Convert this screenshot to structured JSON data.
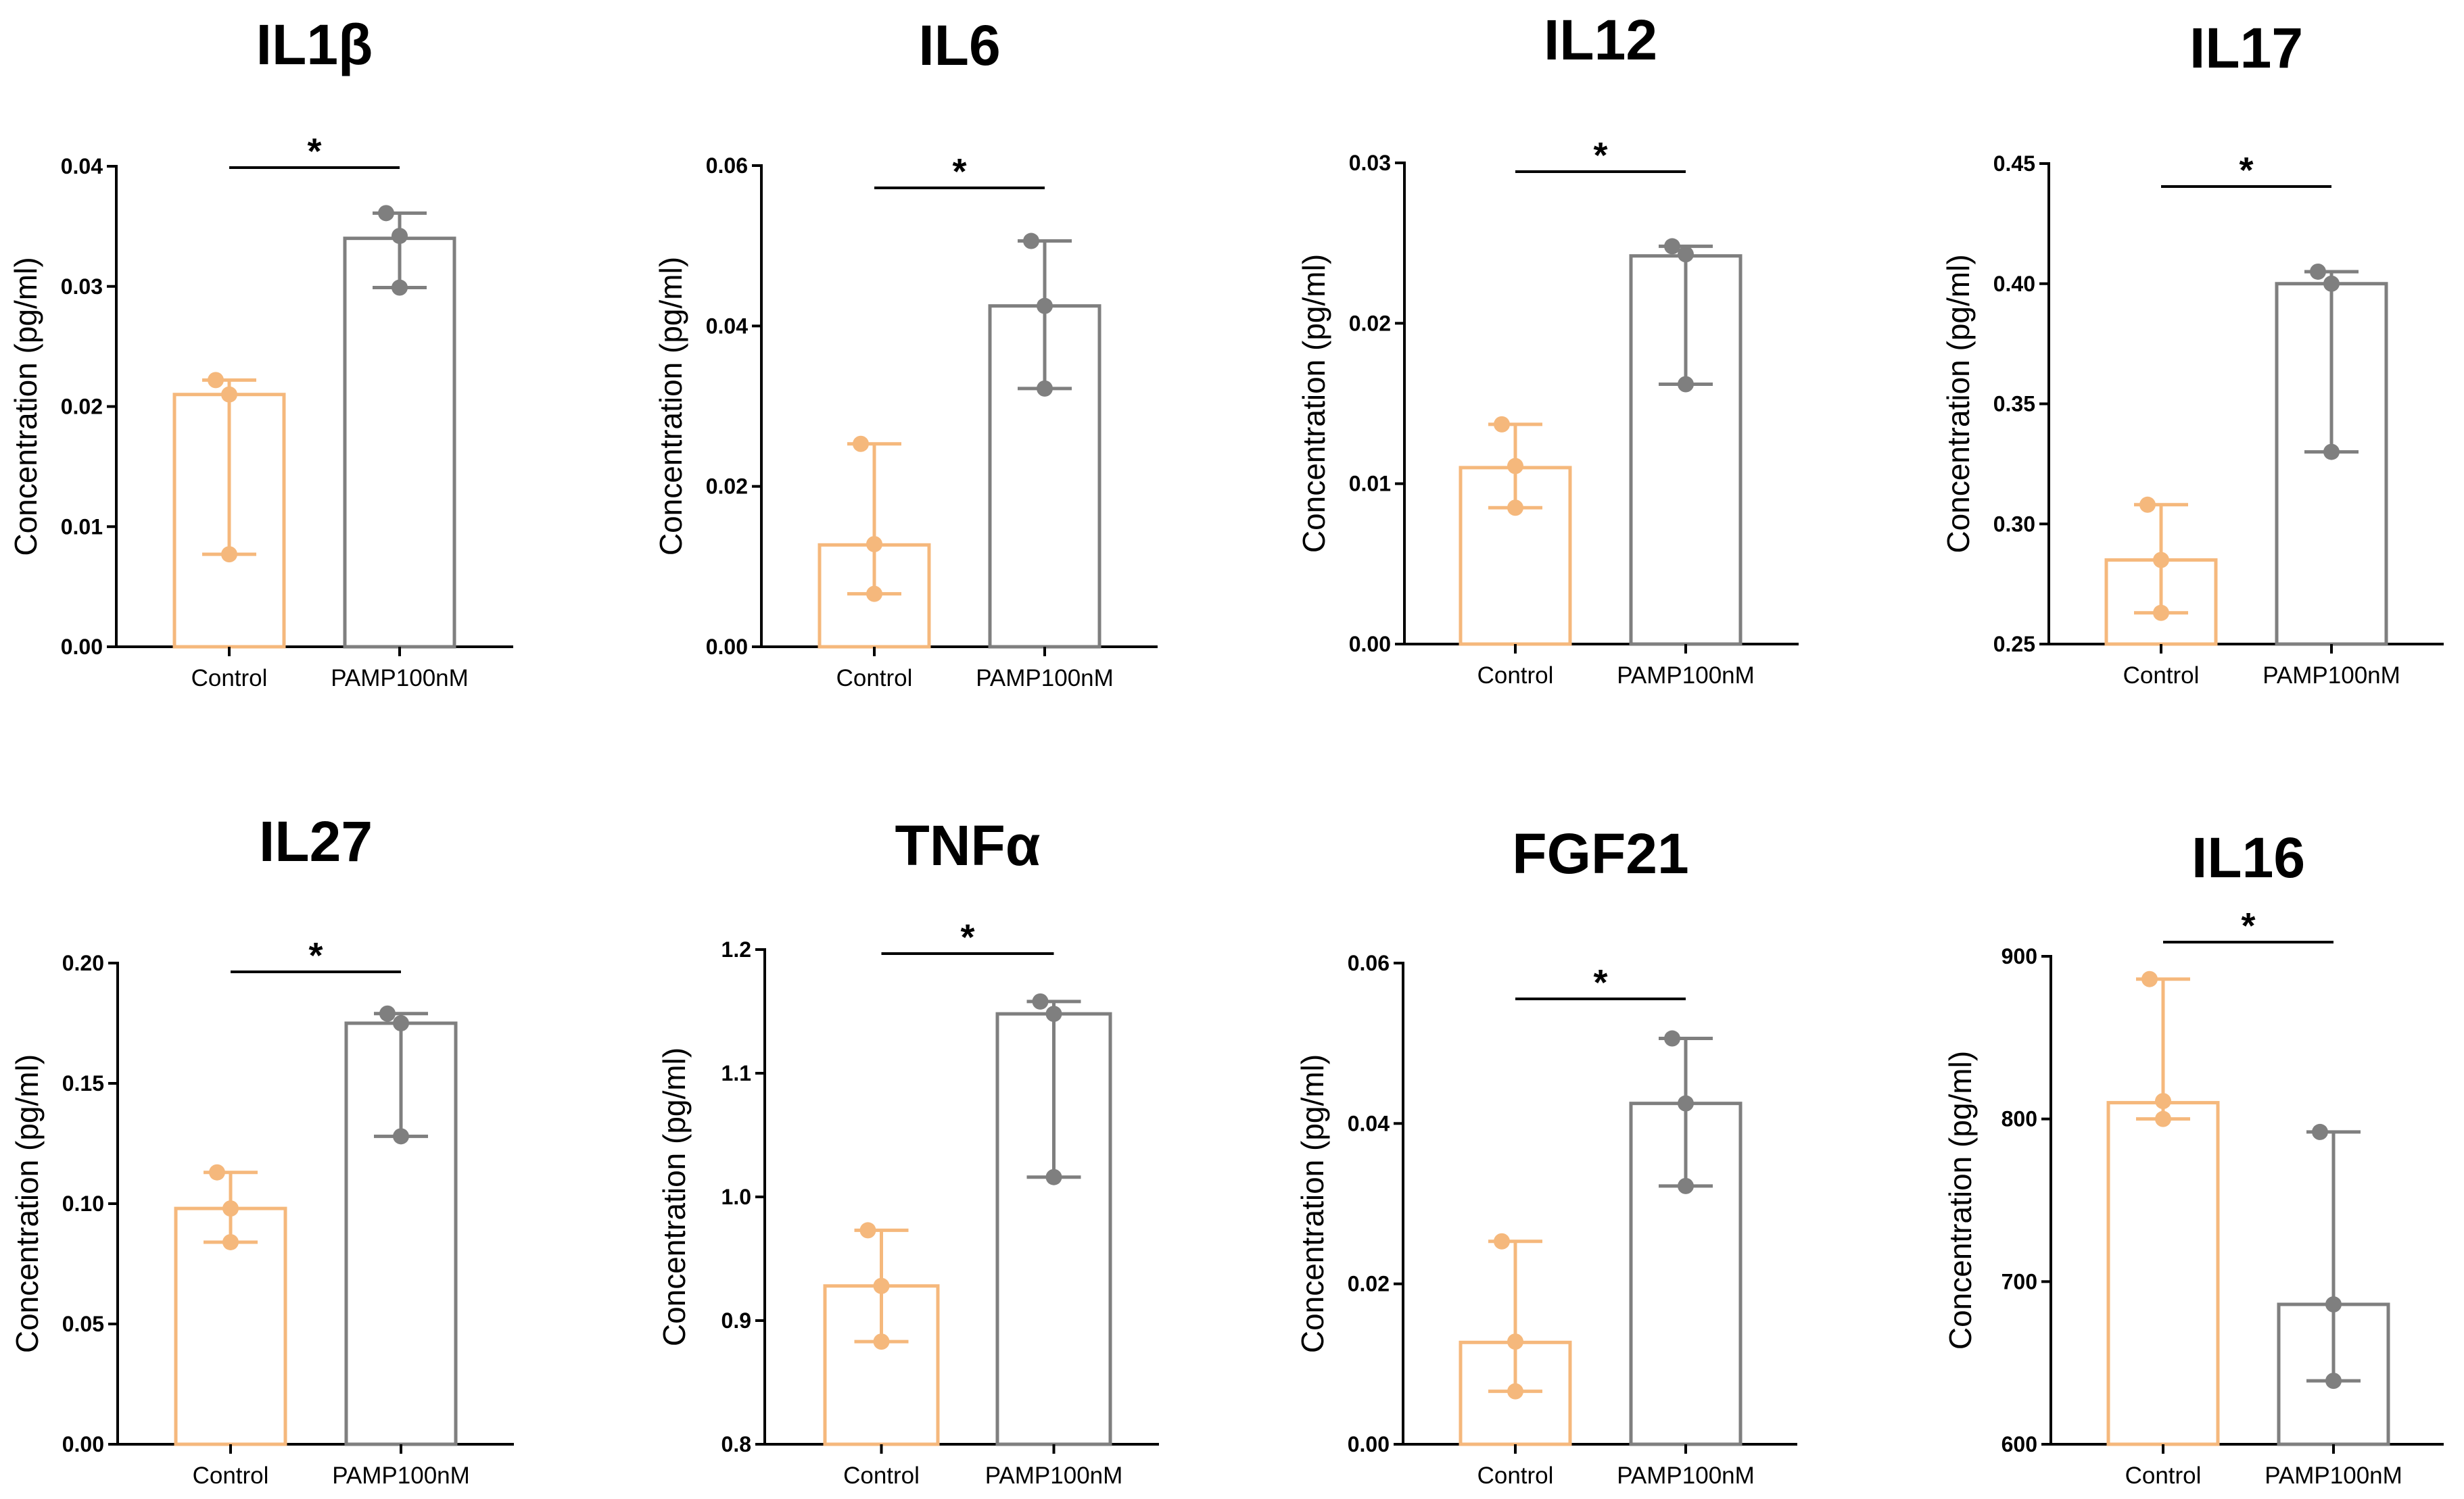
{
  "palette": {
    "control": "#F5B87C",
    "treatment": "#7F7F7F",
    "axis": "#000000"
  },
  "chart_data": [
    {
      "type": "bar",
      "title": "IL1β",
      "ylabel": "Concentration (pg/ml)",
      "ylim": [
        0,
        0.04
      ],
      "yticks": [
        "0.00",
        "0.01",
        "0.02",
        "0.03",
        "0.04"
      ],
      "categories": [
        "Control",
        "PAMP100nM"
      ],
      "values": [
        0.021,
        0.034
      ],
      "errors": [
        [
          0.0077,
          0.0222
        ],
        [
          0.0299,
          0.0361
        ]
      ],
      "points": [
        [
          0.0222,
          0.021,
          0.0077
        ],
        [
          0.0361,
          0.0342,
          0.0299
        ]
      ],
      "significance": "*"
    },
    {
      "type": "bar",
      "title": "IL6",
      "ylabel": "Concentration (pg/ml)",
      "ylim": [
        0,
        0.06
      ],
      "yticks": [
        "0.00",
        "0.02",
        "0.04",
        "0.06"
      ],
      "categories": [
        "Control",
        "PAMP100nM"
      ],
      "values": [
        0.0127,
        0.0425
      ],
      "errors": [
        [
          0.0066,
          0.0253
        ],
        [
          0.0322,
          0.0506
        ]
      ],
      "points": [
        [
          0.0253,
          0.0128,
          0.0066
        ],
        [
          0.0506,
          0.0425,
          0.0322
        ]
      ],
      "significance": "*"
    },
    {
      "type": "bar",
      "title": "IL12",
      "ylabel": "Concentration (pg/ml)",
      "ylim": [
        0,
        0.03
      ],
      "yticks": [
        "0.00",
        "0.01",
        "0.02",
        "0.03"
      ],
      "categories": [
        "Control",
        "PAMP100nM"
      ],
      "values": [
        0.011,
        0.0242
      ],
      "errors": [
        [
          0.0085,
          0.0137
        ],
        [
          0.0162,
          0.0248
        ]
      ],
      "points": [
        [
          0.0137,
          0.0111,
          0.0085
        ],
        [
          0.0248,
          0.0243,
          0.0162
        ]
      ],
      "significance": "*"
    },
    {
      "type": "bar",
      "title": "IL17",
      "ylabel": "Concentration (pg/ml)",
      "ylim": [
        0.25,
        0.45
      ],
      "yticks": [
        "0.25",
        "0.30",
        "0.35",
        "0.40",
        "0.45"
      ],
      "categories": [
        "Control",
        "PAMP100nM"
      ],
      "values": [
        0.285,
        0.4
      ],
      "errors": [
        [
          0.263,
          0.308
        ],
        [
          0.33,
          0.405
        ]
      ],
      "points": [
        [
          0.308,
          0.285,
          0.263
        ],
        [
          0.405,
          0.4,
          0.33
        ]
      ],
      "significance": "*"
    },
    {
      "type": "bar",
      "title": "IL27",
      "ylabel": "Concentration (pg/ml)",
      "ylim": [
        0,
        0.2
      ],
      "yticks": [
        "0.00",
        "0.05",
        "0.10",
        "0.15",
        "0.20"
      ],
      "categories": [
        "Control",
        "PAMP100nM"
      ],
      "values": [
        0.098,
        0.175
      ],
      "errors": [
        [
          0.084,
          0.113
        ],
        [
          0.128,
          0.179
        ]
      ],
      "points": [
        [
          0.113,
          0.098,
          0.084
        ],
        [
          0.179,
          0.175,
          0.128
        ]
      ],
      "significance": "*"
    },
    {
      "type": "bar",
      "title": "TNFα",
      "ylabel": "Concentration (pg/ml)",
      "ylim": [
        0.8,
        1.2
      ],
      "yticks": [
        "0.8",
        "0.9",
        "1.0",
        "1.1",
        "1.2"
      ],
      "categories": [
        "Control",
        "PAMP100nM"
      ],
      "values": [
        0.928,
        1.148
      ],
      "errors": [
        [
          0.883,
          0.973
        ],
        [
          1.016,
          1.158
        ]
      ],
      "points": [
        [
          0.973,
          0.928,
          0.883
        ],
        [
          1.158,
          1.148,
          1.016
        ]
      ],
      "significance": "*"
    },
    {
      "type": "bar",
      "title": "FGF21",
      "ylabel": "Concentration (pg/ml)",
      "ylim": [
        0,
        0.06
      ],
      "yticks": [
        "0.00",
        "0.02",
        "0.04",
        "0.06"
      ],
      "categories": [
        "Control",
        "PAMP100nM"
      ],
      "values": [
        0.0127,
        0.0425
      ],
      "errors": [
        [
          0.0066,
          0.0253
        ],
        [
          0.0322,
          0.0506
        ]
      ],
      "points": [
        [
          0.0253,
          0.0128,
          0.0066
        ],
        [
          0.0506,
          0.0425,
          0.0322
        ]
      ],
      "significance": "*"
    },
    {
      "type": "bar",
      "title": "IL16",
      "ylabel": "Concentration (pg/ml)",
      "ylim": [
        600,
        900
      ],
      "yticks": [
        "600",
        "700",
        "800",
        "900"
      ],
      "categories": [
        "Control",
        "PAMP100nM"
      ],
      "values": [
        810,
        686
      ],
      "errors": [
        [
          800,
          886
        ],
        [
          639,
          792
        ]
      ],
      "points": [
        [
          886,
          811,
          800
        ],
        [
          792,
          686,
          639
        ]
      ],
      "significance": "*"
    }
  ]
}
